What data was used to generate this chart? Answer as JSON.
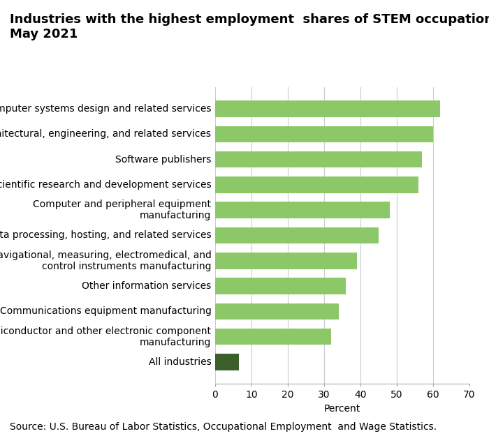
{
  "title_line1": "Industries with the highest employment  shares of STEM occupations,",
  "title_line2": "May 2021",
  "categories": [
    "All industries",
    "Semiconductor and other electronic component\nmanufacturing",
    "Communications equipment manufacturing",
    "Other information services",
    "Navigational, measuring, electromedical, and\ncontrol instruments manufacturing",
    "Data processing, hosting, and related services",
    "Computer and peripheral equipment\nmanufacturing",
    "Scientific research and development services",
    "Software publishers",
    "Architectural, engineering, and related services",
    "Computer systems design and related services"
  ],
  "values": [
    6.5,
    32,
    34,
    36,
    39,
    45,
    48,
    56,
    57,
    60,
    62
  ],
  "bar_colors": [
    "#3a5f2a",
    "#8dc868",
    "#8dc868",
    "#8dc868",
    "#8dc868",
    "#8dc868",
    "#8dc868",
    "#8dc868",
    "#8dc868",
    "#8dc868",
    "#8dc868"
  ],
  "xlabel": "Percent",
  "xlim": [
    0,
    70
  ],
  "xticks": [
    0,
    10,
    20,
    30,
    40,
    50,
    60,
    70
  ],
  "source_text": "Source: U.S. Bureau of Labor Statistics, Occupational Employment  and Wage Statistics.",
  "title_fontsize": 13,
  "tick_fontsize": 10,
  "label_fontsize": 10,
  "source_fontsize": 10,
  "background_color": "#ffffff",
  "grid_color": "#cccccc"
}
